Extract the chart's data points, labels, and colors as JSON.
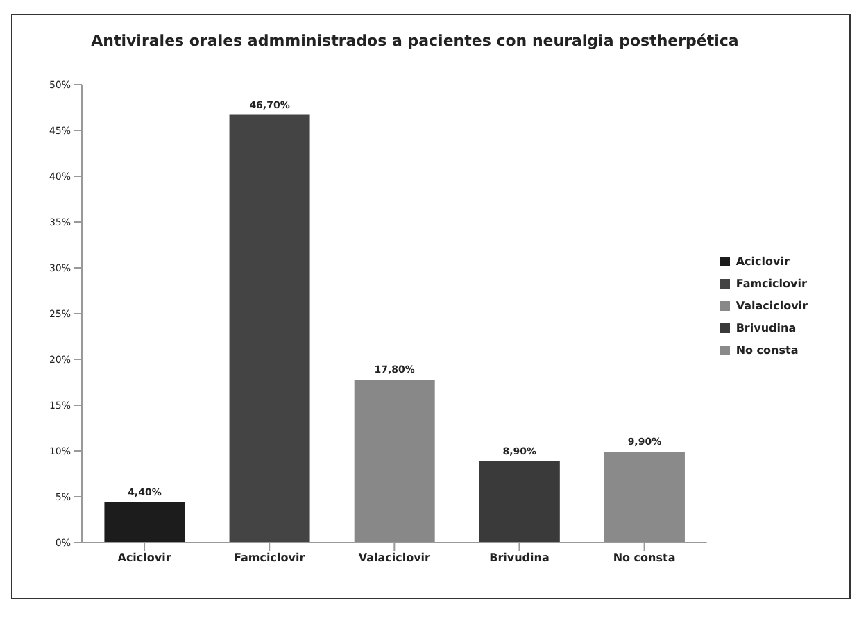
{
  "chart_data": {
    "type": "bar",
    "title": "Antivirales orales admministrados a pacientes con neuralgia postherpética",
    "categories": [
      "Aciclovir",
      "Famciclovir",
      "Valaciclovir",
      "Brivudina",
      "No consta"
    ],
    "stacked": true,
    "series": [
      {
        "name": "Aciclovir",
        "color": "#1c1c1c",
        "values": [
          4.4,
          null,
          null,
          null,
          null
        ],
        "value_labels": [
          "4,40%",
          null,
          null,
          null,
          null
        ]
      },
      {
        "name": "Famciclovir",
        "color": "#444444",
        "values": [
          null,
          46.7,
          null,
          null,
          null
        ],
        "value_labels": [
          null,
          "46,70%",
          null,
          null,
          null
        ]
      },
      {
        "name": "Valaciclovir",
        "color": "#888888",
        "values": [
          null,
          null,
          17.8,
          null,
          null
        ],
        "value_labels": [
          null,
          null,
          "17,80%",
          null,
          null
        ]
      },
      {
        "name": "Brivudina",
        "color": "#3a3a3a",
        "values": [
          null,
          null,
          null,
          8.9,
          null
        ],
        "value_labels": [
          null,
          null,
          null,
          "8,90%",
          null
        ]
      },
      {
        "name": "No consta",
        "color": "#8a8a8a",
        "values": [
          null,
          null,
          null,
          null,
          9.9
        ],
        "value_labels": [
          null,
          null,
          null,
          null,
          "9,90%"
        ]
      }
    ],
    "ylim": [
      0,
      50
    ],
    "yticks": [
      {
        "value": 0,
        "label": "0%"
      },
      {
        "value": 5,
        "label": "5%"
      },
      {
        "value": 10,
        "label": "10%"
      },
      {
        "value": 15,
        "label": "15%"
      },
      {
        "value": 20,
        "label": "20%"
      },
      {
        "value": 25,
        "label": "25%"
      },
      {
        "value": 30,
        "label": "30%"
      },
      {
        "value": 35,
        "label": "35%"
      },
      {
        "value": 40,
        "label": "40%"
      },
      {
        "value": 45,
        "label": "45%"
      },
      {
        "value": 50,
        "label": "50%"
      }
    ],
    "legend": "right"
  }
}
